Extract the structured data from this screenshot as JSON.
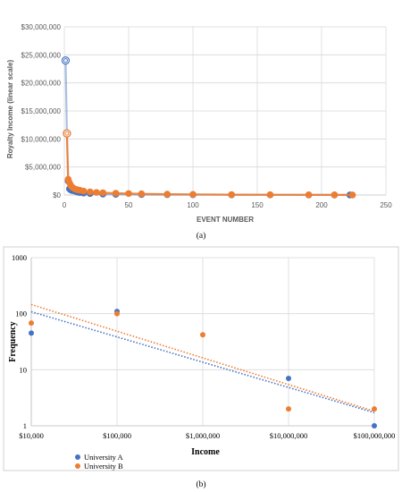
{
  "chart_data": [
    {
      "type": "scatter",
      "title": "",
      "xlabel": "EVENT NUMBER",
      "ylabel": "Royalty Income (linear scale)",
      "xlim": [
        0,
        250
      ],
      "ylim": [
        0,
        30000000
      ],
      "xticks": [
        "0",
        "50",
        "100",
        "150",
        "200",
        "250"
      ],
      "yticks": [
        "$0",
        "$5,000,000",
        "$10,000,000",
        "$15,000,000",
        "$20,000,000",
        "$25,000,000",
        "$30,000,000"
      ],
      "grid": true,
      "legend": "none",
      "series": [
        {
          "color": "#4472C4",
          "x": [
            1,
            2,
            3,
            4,
            5,
            6,
            8,
            10,
            12,
            15,
            20,
            30,
            40,
            60,
            80,
            100,
            130,
            160,
            190,
            210,
            222
          ],
          "y": [
            24000000,
            11000000,
            2500000,
            1100000,
            900000,
            800000,
            700000,
            550000,
            450000,
            350000,
            260000,
            170000,
            120000,
            80000,
            60000,
            45000,
            30000,
            20000,
            12000,
            8000,
            5000
          ]
        },
        {
          "color": "#ED7D31",
          "x": [
            2,
            3,
            4,
            5,
            6,
            8,
            10,
            12,
            15,
            20,
            25,
            30,
            40,
            50,
            60,
            80,
            100,
            130,
            160,
            190,
            210,
            224
          ],
          "y": [
            11000000,
            2800000,
            2200000,
            1700000,
            1400000,
            1100000,
            950000,
            850000,
            700000,
            560000,
            460000,
            400000,
            320000,
            260000,
            210000,
            150000,
            110000,
            70000,
            45000,
            25000,
            15000,
            8000
          ]
        }
      ],
      "panel_label": "(a)"
    },
    {
      "type": "scatter",
      "title": "",
      "xlabel": "Income",
      "ylabel": "Frequency",
      "xscale": "log",
      "yscale": "log",
      "xlim": [
        10000,
        100000000
      ],
      "ylim": [
        1,
        1000
      ],
      "xticks": [
        "$10,000",
        "$100,000",
        "$1,000,000",
        "$10,000,000",
        "$100,000,000"
      ],
      "yticks": [
        "1",
        "10",
        "100",
        "1000"
      ],
      "grid": true,
      "legend": "bottom-left",
      "trendlines": "dotted",
      "series": [
        {
          "name": "University A",
          "color": "#4472C4",
          "x": [
            10000,
            100000,
            10000000,
            100000000
          ],
          "y": [
            45,
            110,
            7,
            1
          ]
        },
        {
          "name": "University B",
          "color": "#ED7D31",
          "x": [
            10000,
            100000,
            1000000,
            10000000,
            100000000
          ],
          "y": [
            68,
            100,
            42,
            2,
            2
          ]
        }
      ],
      "panel_label": "(b)"
    }
  ]
}
